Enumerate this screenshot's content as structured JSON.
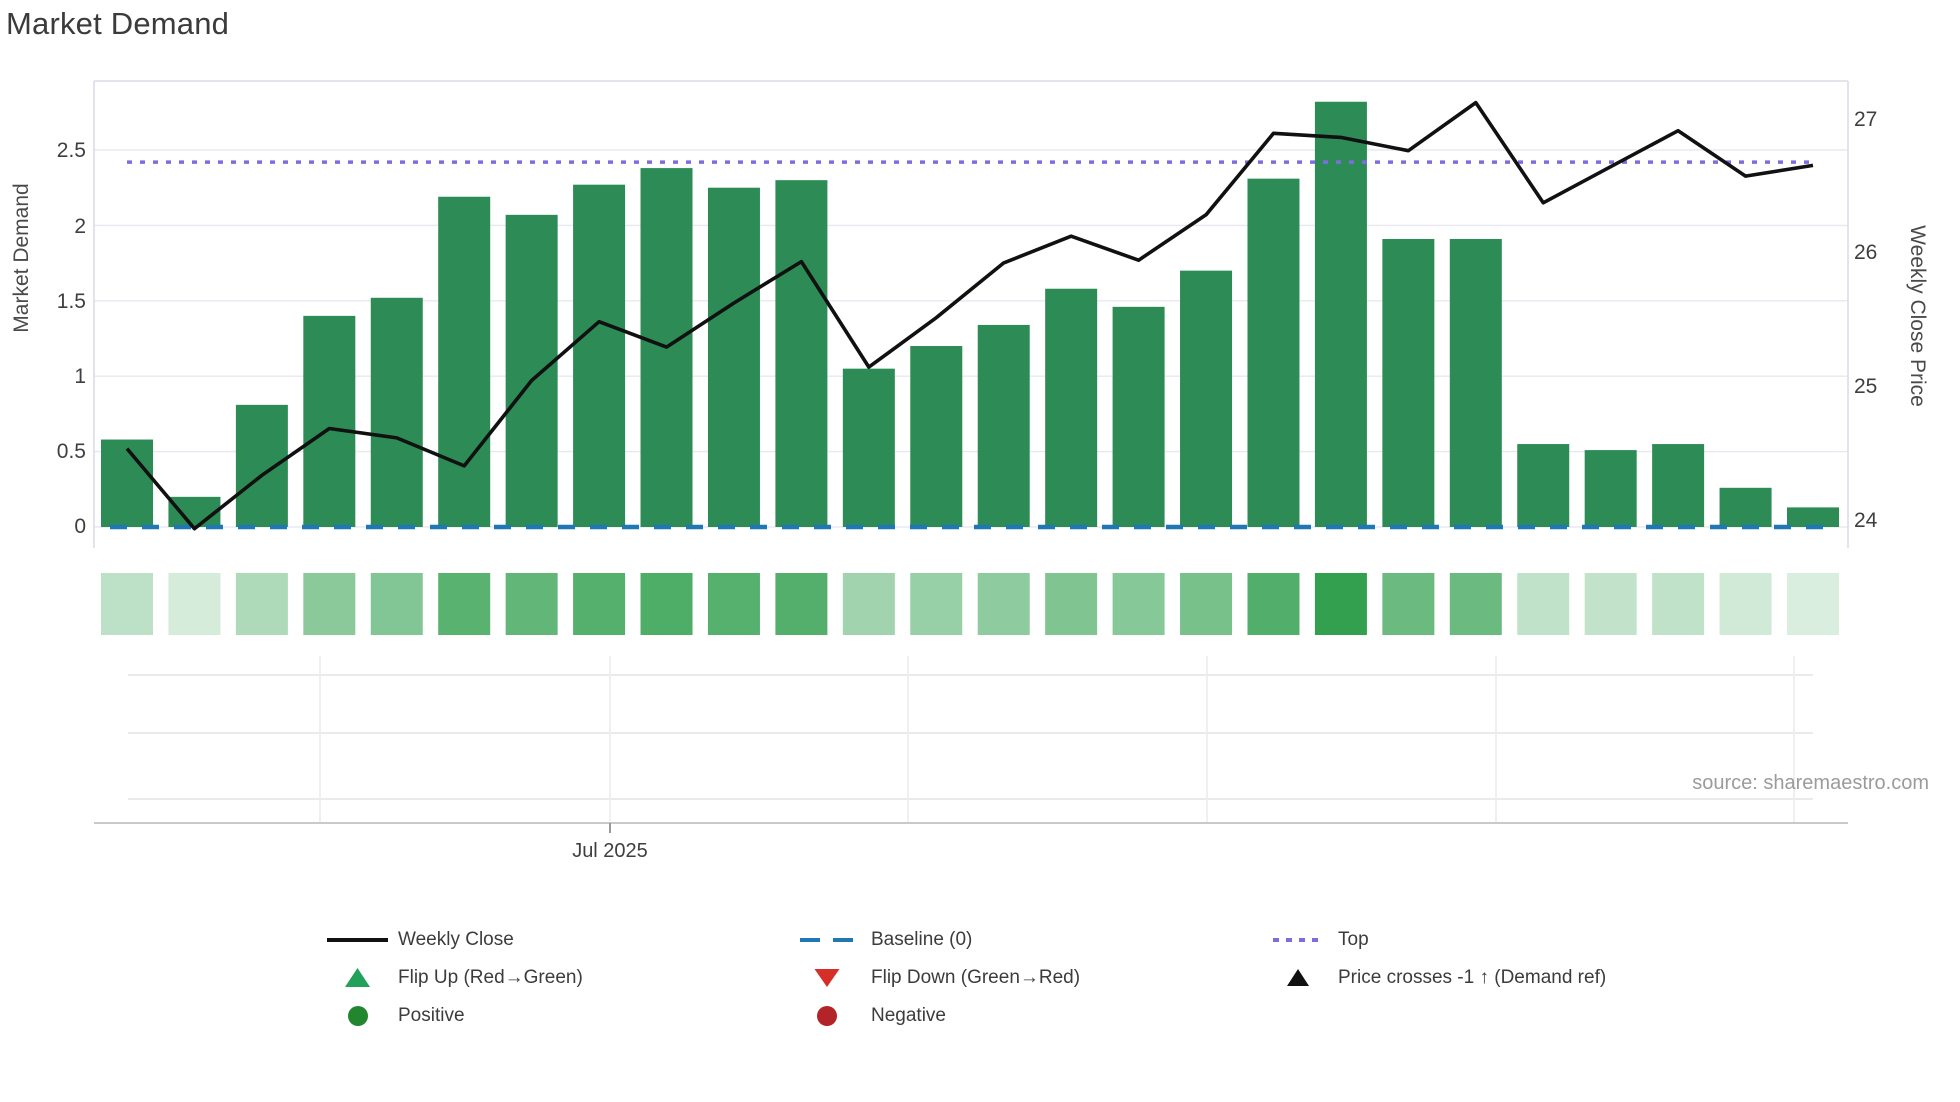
{
  "title": "Market Demand",
  "source_note": "source: sharemaestro.com",
  "chart_data": {
    "type": "bar",
    "subtype": "bar+line combo with heatmap strip",
    "n_weeks": 26,
    "title": "Market Demand",
    "series": [
      {
        "name": "Market Demand",
        "type": "bar",
        "axis": "left",
        "values": [
          0.58,
          0.2,
          0.81,
          1.4,
          1.52,
          2.19,
          2.07,
          2.27,
          2.38,
          2.25,
          2.3,
          1.05,
          1.2,
          1.34,
          1.58,
          1.46,
          1.7,
          2.31,
          2.82,
          1.91,
          1.91,
          0.55,
          0.51,
          0.55,
          0.26,
          0.13
        ]
      },
      {
        "name": "Weekly Close",
        "type": "line",
        "axis": "right",
        "values": [
          24.54,
          23.94,
          24.34,
          24.69,
          24.62,
          24.41,
          25.05,
          25.49,
          25.3,
          25.63,
          25.94,
          25.15,
          25.52,
          25.93,
          26.13,
          25.95,
          26.29,
          26.9,
          26.87,
          26.77,
          27.13,
          26.38,
          26.65,
          26.92,
          26.58,
          26.66
        ]
      },
      {
        "name": "Demand heat strip",
        "type": "heatmap",
        "axis": "none",
        "note": "same values as Market Demand bars, shown as green intensity squares"
      }
    ],
    "reference_lines": {
      "baseline": {
        "label": "Baseline (0)",
        "value": 0
      },
      "top": {
        "label": "Top",
        "value": 2.42
      }
    },
    "left_axis": {
      "title": "Market Demand",
      "ticks": [
        "0",
        "0.5",
        "1",
        "1.5",
        "2",
        "2.5"
      ],
      "tick_values": [
        0,
        0.5,
        1,
        1.5,
        2,
        2.5
      ],
      "range": [
        -0.15,
        2.96
      ]
    },
    "right_axis": {
      "title": "Weekly Close Price",
      "ticks": [
        "24",
        "25",
        "26",
        "27"
      ],
      "tick_values": [
        24,
        25,
        26,
        27
      ],
      "range": [
        23.9,
        27.3
      ]
    },
    "x_axis": {
      "tick_label": "Jul 2025",
      "grid": "monthly",
      "legend_position": "bottom"
    }
  },
  "legend": {
    "weekly_close": "Weekly Close",
    "baseline": "Baseline (0)",
    "top": "Top",
    "flip_up": "Flip Up (Red→Green)",
    "flip_down": "Flip Down (Green→Red)",
    "price_cross": "Price crosses -1 ↑ (Demand ref)",
    "positive": "Positive",
    "negative": "Negative"
  },
  "colors": {
    "bar_green": "#2d8c55",
    "heat_light": "#e1f2e5",
    "heat_dark": "#33a050",
    "line_black": "#111111",
    "baseline_blue": "#1f77b4",
    "top_purple": "#7c6ede",
    "flip_up_green": "#21a15a",
    "positive_green": "#22862f",
    "flip_down_red": "#d62f28",
    "negative_red": "#b22428",
    "title_color": "#3b3b3b",
    "tick_color": "#3f3f3f",
    "axis_title_color": "#4a4a4a",
    "source_color": "#9b9b9b",
    "grid_color": "#e8e8f1",
    "border_color": "#dcdce6",
    "lower_grid": "#e4e4e4",
    "lower_axis": "#c9c9c9",
    "month_grid": "#ededf0"
  }
}
